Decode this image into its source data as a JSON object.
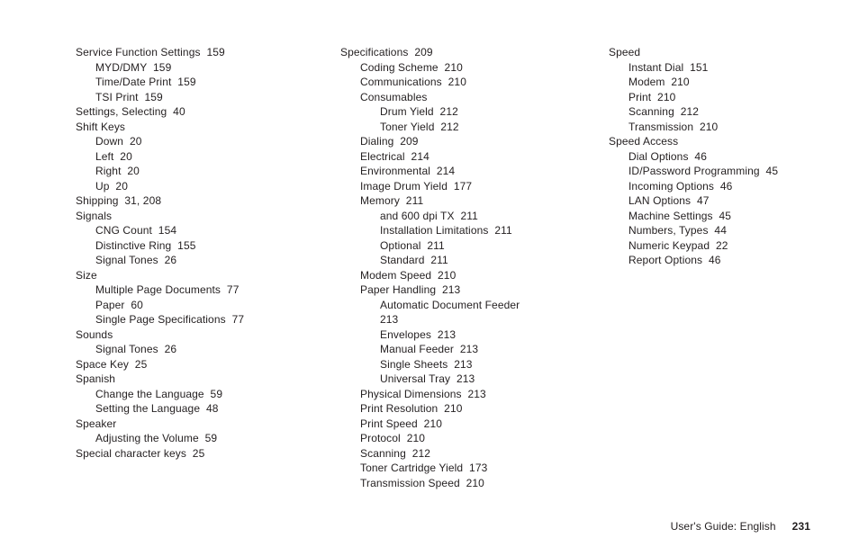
{
  "footer": {
    "label": "User's Guide:  English",
    "page": "231"
  },
  "columns": [
    [
      {
        "l": 1,
        "t": "Service Function Settings",
        "p": "159"
      },
      {
        "l": 2,
        "t": "MYD/DMY",
        "p": "159"
      },
      {
        "l": 2,
        "t": "Time/Date Print",
        "p": "159"
      },
      {
        "l": 2,
        "t": "TSI Print",
        "p": "159"
      },
      {
        "l": 1,
        "t": "Settings, Selecting",
        "p": "40"
      },
      {
        "l": 1,
        "t": "Shift Keys"
      },
      {
        "l": 2,
        "t": "Down",
        "p": "20"
      },
      {
        "l": 2,
        "t": "Left",
        "p": "20"
      },
      {
        "l": 2,
        "t": "Right",
        "p": "20"
      },
      {
        "l": 2,
        "t": "Up",
        "p": "20"
      },
      {
        "l": 1,
        "t": "Shipping",
        "p": "31, 208"
      },
      {
        "l": 1,
        "t": "Signals"
      },
      {
        "l": 2,
        "t": "CNG Count",
        "p": "154"
      },
      {
        "l": 2,
        "t": "Distinctive Ring",
        "p": "155"
      },
      {
        "l": 2,
        "t": "Signal Tones",
        "p": "26"
      },
      {
        "l": 1,
        "t": "Size"
      },
      {
        "l": 2,
        "t": "Multiple Page Documents",
        "p": "77"
      },
      {
        "l": 2,
        "t": "Paper",
        "p": "60"
      },
      {
        "l": 2,
        "t": "Single Page Specifications",
        "p": "77"
      },
      {
        "l": 1,
        "t": "Sounds"
      },
      {
        "l": 2,
        "t": "Signal Tones",
        "p": "26"
      },
      {
        "l": 1,
        "t": "Space Key",
        "p": "25"
      },
      {
        "l": 1,
        "t": "Spanish"
      },
      {
        "l": 2,
        "t": "Change the Language",
        "p": "59"
      },
      {
        "l": 2,
        "t": "Setting the Language",
        "p": "48"
      },
      {
        "l": 1,
        "t": "Speaker"
      },
      {
        "l": 2,
        "t": "Adjusting the Volume",
        "p": "59"
      },
      {
        "l": 1,
        "t": "Special character keys",
        "p": "25"
      }
    ],
    [
      {
        "l": 1,
        "t": "Specifications",
        "p": "209"
      },
      {
        "l": 2,
        "t": "Coding Scheme",
        "p": "210"
      },
      {
        "l": 2,
        "t": "Communications",
        "p": "210"
      },
      {
        "l": 2,
        "t": "Consumables"
      },
      {
        "l": 3,
        "t": "Drum Yield",
        "p": "212"
      },
      {
        "l": 3,
        "t": "Toner Yield",
        "p": "212"
      },
      {
        "l": 2,
        "t": "Dialing",
        "p": "209"
      },
      {
        "l": 2,
        "t": "Electrical",
        "p": "214"
      },
      {
        "l": 2,
        "t": "Environmental",
        "p": "214"
      },
      {
        "l": 2,
        "t": "Image Drum Yield",
        "p": "177"
      },
      {
        "l": 2,
        "t": "Memory",
        "p": "211"
      },
      {
        "l": 3,
        "t": "and 600 dpi TX",
        "p": "211"
      },
      {
        "l": 3,
        "t": "Installation Limitations",
        "p": "211"
      },
      {
        "l": 3,
        "t": "Optional",
        "p": "211"
      },
      {
        "l": 3,
        "t": "Standard",
        "p": "211"
      },
      {
        "l": 2,
        "t": "Modem Speed",
        "p": "210"
      },
      {
        "l": 2,
        "t": "Paper Handling",
        "p": "213"
      },
      {
        "l": 3,
        "t": "Automatic Document Feeder"
      },
      {
        "l": 3,
        "t": "213"
      },
      {
        "l": 3,
        "t": "Envelopes",
        "p": "213"
      },
      {
        "l": 3,
        "t": "Manual Feeder",
        "p": "213"
      },
      {
        "l": 3,
        "t": "Single Sheets",
        "p": "213"
      },
      {
        "l": 3,
        "t": "Universal Tray",
        "p": "213"
      },
      {
        "l": 2,
        "t": "Physical Dimensions",
        "p": "213"
      },
      {
        "l": 2,
        "t": "Print Resolution",
        "p": "210"
      },
      {
        "l": 2,
        "t": "Print Speed",
        "p": "210"
      },
      {
        "l": 2,
        "t": "Protocol",
        "p": "210"
      },
      {
        "l": 2,
        "t": "Scanning",
        "p": "212"
      },
      {
        "l": 2,
        "t": "Toner Cartridge Yield",
        "p": "173"
      },
      {
        "l": 2,
        "t": "Transmission Speed",
        "p": "210"
      }
    ],
    [
      {
        "l": 1,
        "t": "Speed"
      },
      {
        "l": 2,
        "t": "Instant Dial",
        "p": "151"
      },
      {
        "l": 2,
        "t": "Modem",
        "p": "210"
      },
      {
        "l": 2,
        "t": "Print",
        "p": "210"
      },
      {
        "l": 2,
        "t": "Scanning",
        "p": "212"
      },
      {
        "l": 2,
        "t": "Transmission",
        "p": "210"
      },
      {
        "l": 1,
        "t": "Speed Access"
      },
      {
        "l": 2,
        "t": "Dial Options",
        "p": "46"
      },
      {
        "l": 2,
        "t": "ID/Password Programming",
        "p": "45"
      },
      {
        "l": 2,
        "t": "Incoming Options",
        "p": "46"
      },
      {
        "l": 2,
        "t": "LAN Options",
        "p": "47"
      },
      {
        "l": 2,
        "t": "Machine Settings",
        "p": "45"
      },
      {
        "l": 2,
        "t": "Numbers, Types",
        "p": "44"
      },
      {
        "l": 2,
        "t": "Numeric Keypad",
        "p": "22"
      },
      {
        "l": 2,
        "t": "Report Options",
        "p": "46"
      }
    ]
  ]
}
